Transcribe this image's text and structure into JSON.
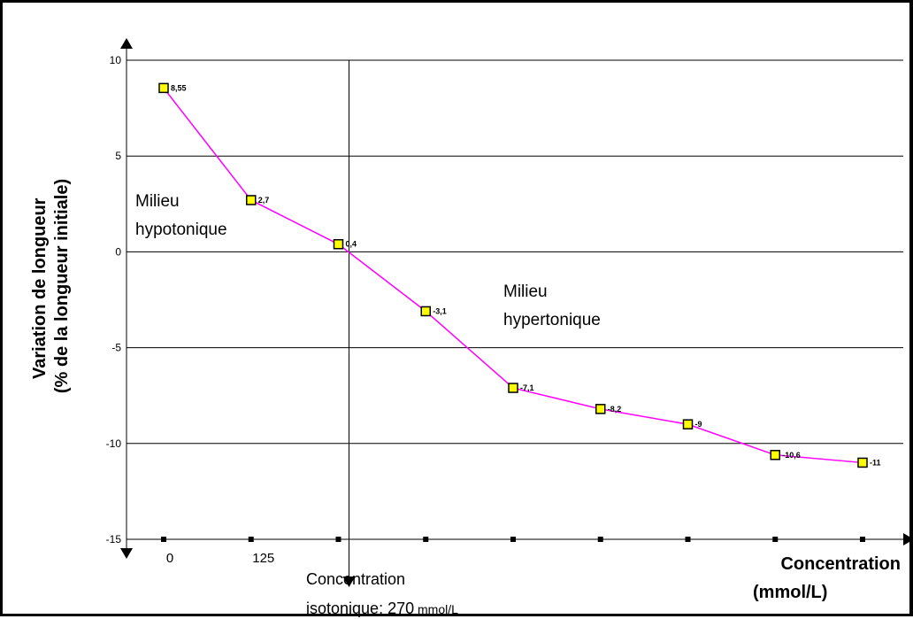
{
  "chart_data": {
    "type": "line",
    "categories": [
      "0",
      "125",
      "",
      "",
      "",
      "",
      "",
      "",
      ""
    ],
    "values": [
      8.55,
      2.7,
      0.4,
      -3.1,
      -7.1,
      -8.2,
      -9,
      -10.6,
      -11
    ],
    "value_labels": [
      "8,55",
      "2,7",
      "0,4",
      "-3,1",
      "-7,1",
      "-8,2",
      "-9",
      "-10,6",
      "-11"
    ],
    "ylabel_line1": "Variation de longueur",
    "ylabel_line2": "(% de la longueur initiale)",
    "xlabel_line1": "Concentration",
    "xlabel_line2": "(mmol/L)",
    "ylim": [
      -15,
      10
    ],
    "yticks": [
      10,
      5,
      0,
      -5,
      -10,
      -15
    ],
    "ytick_labels": [
      "10",
      "5",
      "0",
      "-5",
      "-10",
      "-15"
    ],
    "grid": true,
    "line_color": "#ff00ff",
    "marker_fill": "#ffff00",
    "annotations": {
      "hypo_line1": "Milieu",
      "hypo_line2": "hypotonique",
      "hyper_line1": "Milieu",
      "hyper_line2": "hypertonique",
      "iso_line1": "Concentration",
      "iso_line2_prefix": "isotonique: 270",
      "iso_line2_unit": " mmol/L"
    }
  }
}
